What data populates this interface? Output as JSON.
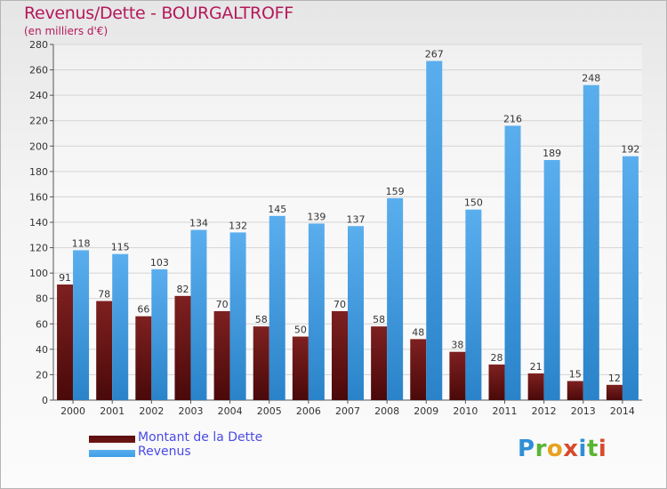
{
  "chart_data": {
    "type": "bar",
    "title": "Revenus/Dette - BOURGALTROFF",
    "subtitle": "(en milliers d'€)",
    "categories": [
      "2000",
      "2001",
      "2002",
      "2003",
      "2004",
      "2005",
      "2006",
      "2007",
      "2008",
      "2009",
      "2010",
      "2011",
      "2012",
      "2013",
      "2014"
    ],
    "series": [
      {
        "name": "Montant de la Dette",
        "color": "#6f1616",
        "values": [
          91,
          78,
          66,
          82,
          70,
          58,
          50,
          70,
          58,
          48,
          38,
          28,
          21,
          15,
          12
        ]
      },
      {
        "name": "Revenus",
        "color": "#3d9ee6",
        "values": [
          118,
          115,
          103,
          134,
          132,
          145,
          139,
          137,
          159,
          267,
          150,
          216,
          189,
          248,
          192
        ]
      }
    ],
    "yticks": [
      0,
      20,
      40,
      60,
      80,
      100,
      120,
      140,
      160,
      180,
      200,
      220,
      240,
      260,
      280
    ],
    "ylim": [
      0,
      280
    ],
    "grid": true,
    "legend_position": "bottom-left"
  },
  "logo_text": "Proxiti"
}
